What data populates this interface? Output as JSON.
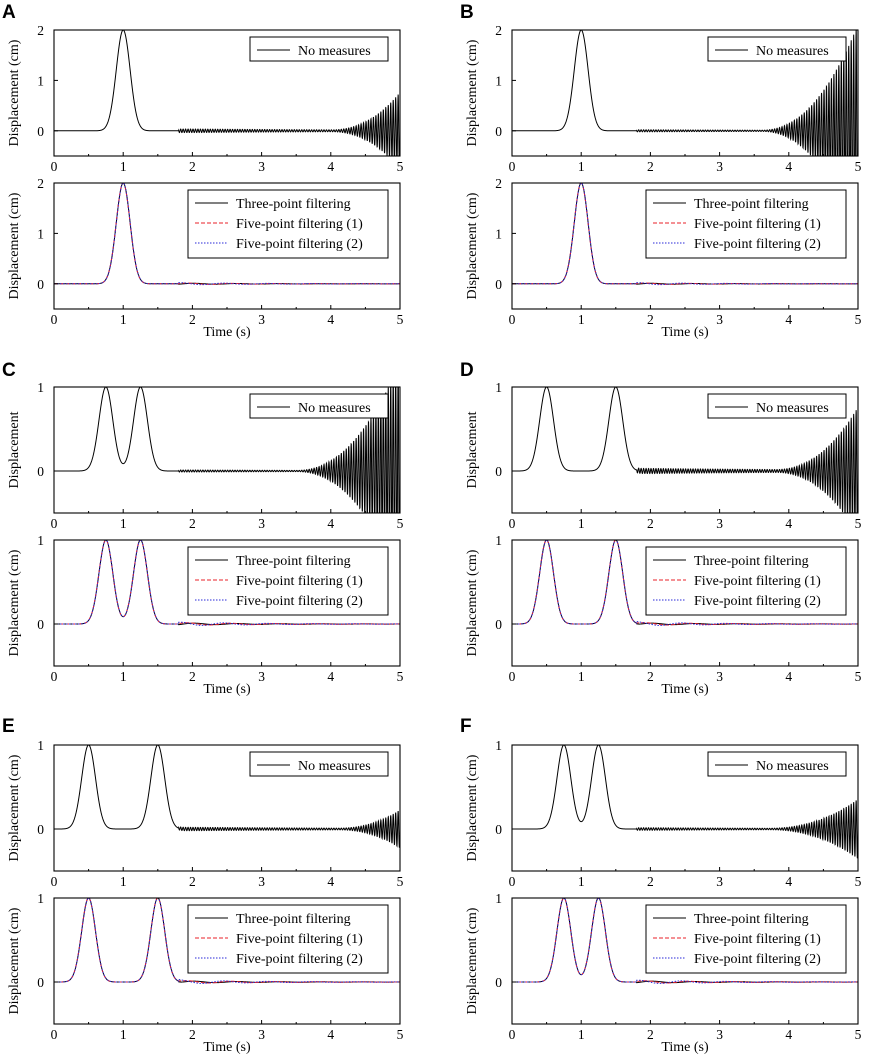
{
  "figure": {
    "panels": [
      {
        "letter": "A",
        "peaks": [
          1.0
        ],
        "peak_height": 2,
        "sigma": 0.1,
        "ylim": [
          -0.5,
          2
        ],
        "yticks": [
          0,
          1,
          2
        ],
        "grow": [
          4.0,
          5.0,
          0.75
        ],
        "freq": 28,
        "tail": 0.035
      },
      {
        "letter": "B",
        "peaks": [
          1.0
        ],
        "peak_height": 2,
        "sigma": 0.1,
        "ylim": [
          -0.5,
          2
        ],
        "yticks": [
          0,
          1,
          2
        ],
        "grow": [
          3.6,
          5.0,
          2.1
        ],
        "freq": 28,
        "tail": 0.02
      },
      {
        "letter": "C",
        "peaks": [
          0.75,
          1.25
        ],
        "peak_height": 1,
        "sigma": 0.1,
        "ylim": [
          -0.5,
          1
        ],
        "yticks": [
          0,
          1
        ],
        "grow": [
          3.5,
          5.0,
          1.3
        ],
        "freq": 28,
        "tail": 0.012
      },
      {
        "letter": "D",
        "peaks": [
          0.5,
          1.5
        ],
        "peak_height": 1,
        "sigma": 0.1,
        "ylim": [
          -0.5,
          1
        ],
        "yticks": [
          0,
          1
        ],
        "grow": [
          3.8,
          5.0,
          0.75
        ],
        "freq": 28,
        "tail": 0.03
      },
      {
        "letter": "E",
        "peaks": [
          0.5,
          1.5
        ],
        "peak_height": 1,
        "sigma": 0.1,
        "ylim": [
          -0.5,
          1
        ],
        "yticks": [
          0,
          1
        ],
        "grow": [
          4.1,
          5.0,
          0.22
        ],
        "freq": 28,
        "tail": 0.02
      },
      {
        "letter": "F",
        "peaks": [
          0.75,
          1.25
        ],
        "peak_height": 1,
        "sigma": 0.1,
        "ylim": [
          -0.5,
          1
        ],
        "yticks": [
          0,
          1
        ],
        "grow": [
          3.7,
          5.0,
          0.35
        ],
        "freq": 28,
        "tail": 0.015
      }
    ],
    "colors": {
      "axis": "#000000",
      "three_point": "#000000",
      "five_point_1": "#e8202a",
      "five_point_2": "#2a2ad8"
    }
  },
  "chart_data": [
    {
      "panel": "A",
      "subplot": "top",
      "type": "line",
      "xlabel": "",
      "ylabel": "Displacement (cm)",
      "xlim": [
        0,
        5
      ],
      "ylim": [
        -0.5,
        2
      ],
      "xticks": [
        0,
        1,
        2,
        3,
        4,
        5
      ],
      "yticks": [
        0,
        1,
        2
      ],
      "legend": "top-right",
      "series": [
        {
          "name": "No measures",
          "x": [
            0,
            0.8,
            1.0,
            1.2,
            2.0,
            3.0,
            4.0,
            4.5,
            5.0
          ],
          "y": [
            0,
            0.27,
            2,
            0.27,
            0,
            0,
            0.05,
            0.2,
            0.75
          ]
        }
      ]
    },
    {
      "panel": "A",
      "subplot": "bottom",
      "type": "line",
      "xlabel": "Time (s)",
      "ylabel": "Displacement (cm)",
      "xlim": [
        0,
        5
      ],
      "ylim": [
        -0.5,
        2
      ],
      "xticks": [
        0,
        1,
        2,
        3,
        4,
        5
      ],
      "yticks": [
        0,
        1,
        2
      ],
      "legend": "top-right",
      "series": [
        {
          "name": "Three-point filtering",
          "x": [
            0,
            0.8,
            1.0,
            1.2,
            2.0,
            5.0
          ],
          "y": [
            0,
            0.27,
            2,
            0.27,
            0,
            0
          ]
        },
        {
          "name": "Five-point filtering (1)",
          "x": [
            0,
            0.8,
            1.0,
            1.2,
            2.0,
            5.0
          ],
          "y": [
            0,
            0.27,
            2,
            0.27,
            0,
            0
          ]
        },
        {
          "name": "Five-point filtering (2)",
          "x": [
            0,
            0.8,
            1.0,
            1.2,
            2.0,
            5.0
          ],
          "y": [
            0,
            0.27,
            2,
            0.27,
            0,
            0
          ]
        }
      ]
    },
    {
      "panel": "B",
      "subplot": "top",
      "type": "line",
      "xlabel": "",
      "ylabel": "Displacement (cm)",
      "xlim": [
        0,
        5
      ],
      "ylim": [
        -0.5,
        2
      ],
      "xticks": [
        0,
        1,
        2,
        3,
        4,
        5
      ],
      "yticks": [
        0,
        1,
        2
      ],
      "legend": "top-right",
      "series": [
        {
          "name": "No measures",
          "x": [
            0,
            0.8,
            1.0,
            1.2,
            2.0,
            3.0,
            4.0,
            4.5,
            5.0
          ],
          "y": [
            0,
            0.27,
            2,
            0.27,
            0,
            0,
            0.15,
            0.6,
            2.0
          ]
        }
      ]
    },
    {
      "panel": "B",
      "subplot": "bottom",
      "type": "line",
      "xlabel": "Time (s)",
      "ylabel": "Displacement (cm)",
      "xlim": [
        0,
        5
      ],
      "ylim": [
        -0.5,
        2
      ],
      "xticks": [
        0,
        1,
        2,
        3,
        4,
        5
      ],
      "yticks": [
        0,
        1,
        2
      ],
      "legend": "top-right",
      "series": [
        {
          "name": "Three-point filtering",
          "x": [
            0,
            0.8,
            1.0,
            1.2,
            2.0,
            5.0
          ],
          "y": [
            0,
            0.27,
            2,
            0.27,
            0,
            0
          ]
        },
        {
          "name": "Five-point filtering (1)",
          "x": [
            0,
            0.8,
            1.0,
            1.2,
            2.0,
            5.0
          ],
          "y": [
            0,
            0.27,
            2,
            0.27,
            0,
            0
          ]
        },
        {
          "name": "Five-point filtering (2)",
          "x": [
            0,
            0.8,
            1.0,
            1.2,
            2.0,
            5.0
          ],
          "y": [
            0,
            0.27,
            2,
            0.27,
            0,
            0
          ]
        }
      ]
    },
    {
      "panel": "C",
      "subplot": "top",
      "type": "line",
      "xlabel": "",
      "ylabel": "Displacement",
      "xlim": [
        0,
        5
      ],
      "ylim": [
        -0.5,
        1
      ],
      "xticks": [
        0,
        1,
        2,
        3,
        4,
        5
      ],
      "yticks": [
        0,
        1
      ],
      "legend": "top-right",
      "series": [
        {
          "name": "No measures",
          "x": [
            0,
            0.75,
            1.0,
            1.25,
            2.0,
            3.0,
            4.0,
            4.5,
            5.0
          ],
          "y": [
            0,
            1,
            0.09,
            1,
            0,
            0,
            0.1,
            0.4,
            1.0
          ]
        }
      ]
    },
    {
      "panel": "C",
      "subplot": "bottom",
      "type": "line",
      "xlabel": "Time (s)",
      "ylabel": "Displacement (cm)",
      "xlim": [
        0,
        5
      ],
      "ylim": [
        -0.5,
        1
      ],
      "xticks": [
        0,
        1,
        2,
        3,
        4,
        5
      ],
      "yticks": [
        0,
        1
      ],
      "legend": "top-right",
      "series": [
        {
          "name": "Three-point filtering",
          "x": [
            0,
            0.75,
            1.0,
            1.25,
            2.0,
            5.0
          ],
          "y": [
            0,
            1,
            0.09,
            1,
            0,
            0
          ]
        },
        {
          "name": "Five-point filtering (1)",
          "x": [
            0,
            0.75,
            1.0,
            1.25,
            2.0,
            5.0
          ],
          "y": [
            0,
            1,
            0.09,
            1,
            0,
            0
          ]
        },
        {
          "name": "Five-point filtering (2)",
          "x": [
            0,
            0.75,
            1.0,
            1.25,
            2.0,
            5.0
          ],
          "y": [
            0,
            1,
            0.09,
            1,
            0,
            0
          ]
        }
      ]
    },
    {
      "panel": "D",
      "subplot": "top",
      "type": "line",
      "xlabel": "",
      "ylabel": "Displacement",
      "xlim": [
        0,
        5
      ],
      "ylim": [
        -0.5,
        1
      ],
      "xticks": [
        0,
        1,
        2,
        3,
        4,
        5
      ],
      "yticks": [
        0,
        1
      ],
      "legend": "top-right",
      "series": [
        {
          "name": "No measures",
          "x": [
            0,
            0.5,
            1.0,
            1.5,
            2.0,
            3.0,
            4.0,
            4.5,
            5.0
          ],
          "y": [
            0,
            1,
            0,
            1,
            0,
            0,
            0.08,
            0.3,
            0.75
          ]
        }
      ]
    },
    {
      "panel": "D",
      "subplot": "bottom",
      "type": "line",
      "xlabel": "Time (s)",
      "ylabel": "Displacement (cm)",
      "xlim": [
        0,
        5
      ],
      "ylim": [
        -0.5,
        1
      ],
      "xticks": [
        0,
        1,
        2,
        3,
        4,
        5
      ],
      "yticks": [
        0,
        1
      ],
      "legend": "top-right",
      "series": [
        {
          "name": "Three-point filtering",
          "x": [
            0,
            0.5,
            1.0,
            1.5,
            2.0,
            5.0
          ],
          "y": [
            0,
            1,
            0,
            1,
            0,
            0
          ]
        },
        {
          "name": "Five-point filtering (1)",
          "x": [
            0,
            0.5,
            1.0,
            1.5,
            2.0,
            5.0
          ],
          "y": [
            0,
            1,
            0,
            1,
            0,
            0
          ]
        },
        {
          "name": "Five-point filtering (2)",
          "x": [
            0,
            0.5,
            1.0,
            1.5,
            2.0,
            5.0
          ],
          "y": [
            0,
            1,
            0,
            1,
            0,
            0
          ]
        }
      ]
    },
    {
      "panel": "E",
      "subplot": "top",
      "type": "line",
      "xlabel": "",
      "ylabel": "Displacement (cm)",
      "xlim": [
        0,
        5
      ],
      "ylim": [
        -0.5,
        1
      ],
      "xticks": [
        0,
        1,
        2,
        3,
        4,
        5
      ],
      "yticks": [
        0,
        1
      ],
      "legend": "top-right",
      "series": [
        {
          "name": "No measures",
          "x": [
            0,
            0.5,
            1.0,
            1.5,
            2.0,
            3.0,
            4.0,
            4.5,
            5.0
          ],
          "y": [
            0,
            1,
            0,
            1,
            0,
            0,
            0.02,
            0.07,
            0.22
          ]
        }
      ]
    },
    {
      "panel": "E",
      "subplot": "bottom",
      "type": "line",
      "xlabel": "Time (s)",
      "ylabel": "Displacement (cm)",
      "xlim": [
        0,
        5
      ],
      "ylim": [
        -0.5,
        1
      ],
      "xticks": [
        0,
        1,
        2,
        3,
        4,
        5
      ],
      "yticks": [
        0,
        1
      ],
      "legend": "top-right",
      "series": [
        {
          "name": "Three-point filtering",
          "x": [
            0,
            0.5,
            1.0,
            1.5,
            2.0,
            5.0
          ],
          "y": [
            0,
            1,
            0,
            1,
            0,
            0
          ]
        },
        {
          "name": "Five-point filtering (1)",
          "x": [
            0,
            0.5,
            1.0,
            1.5,
            2.0,
            5.0
          ],
          "y": [
            0,
            1,
            0,
            1,
            0,
            0
          ]
        },
        {
          "name": "Five-point filtering (2)",
          "x": [
            0,
            0.5,
            1.0,
            1.5,
            2.0,
            5.0
          ],
          "y": [
            0,
            1,
            0,
            1,
            0,
            0
          ]
        }
      ]
    },
    {
      "panel": "F",
      "subplot": "top",
      "type": "line",
      "xlabel": "",
      "ylabel": "Displacement (cm)",
      "xlim": [
        0,
        5
      ],
      "ylim": [
        -0.5,
        1
      ],
      "xticks": [
        0,
        1,
        2,
        3,
        4,
        5
      ],
      "yticks": [
        0,
        1
      ],
      "legend": "top-right",
      "series": [
        {
          "name": "No measures",
          "x": [
            0,
            0.75,
            1.0,
            1.25,
            2.0,
            3.0,
            4.0,
            4.5,
            5.0
          ],
          "y": [
            0,
            1,
            0.09,
            1,
            0,
            0,
            0.05,
            0.15,
            0.35
          ]
        }
      ]
    },
    {
      "panel": "F",
      "subplot": "bottom",
      "type": "line",
      "xlabel": "Time (s)",
      "ylabel": "Displacement (cm)",
      "xlim": [
        0,
        5
      ],
      "ylim": [
        -0.5,
        1
      ],
      "xticks": [
        0,
        1,
        2,
        3,
        4,
        5
      ],
      "yticks": [
        0,
        1
      ],
      "legend": "top-right",
      "series": [
        {
          "name": "Three-point filtering",
          "x": [
            0,
            0.75,
            1.0,
            1.25,
            2.0,
            5.0
          ],
          "y": [
            0,
            1,
            0.09,
            1,
            0,
            0
          ]
        },
        {
          "name": "Five-point filtering (1)",
          "x": [
            0,
            0.75,
            1.0,
            1.25,
            2.0,
            5.0
          ],
          "y": [
            0,
            1,
            0.09,
            1,
            0,
            0
          ]
        },
        {
          "name": "Five-point filtering (2)",
          "x": [
            0,
            0.75,
            1.0,
            1.25,
            2.0,
            5.0
          ],
          "y": [
            0,
            1,
            0.09,
            1,
            0,
            0
          ]
        }
      ]
    }
  ]
}
